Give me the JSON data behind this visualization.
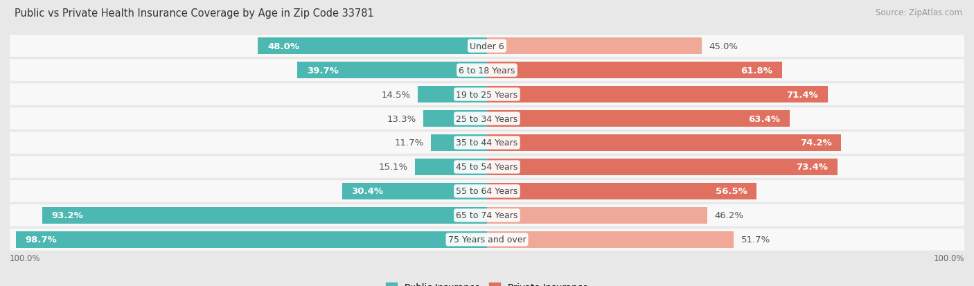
{
  "title": "Public vs Private Health Insurance Coverage by Age in Zip Code 33781",
  "source": "Source: ZipAtlas.com",
  "categories": [
    "Under 6",
    "6 to 18 Years",
    "19 to 25 Years",
    "25 to 34 Years",
    "35 to 44 Years",
    "45 to 54 Years",
    "55 to 64 Years",
    "65 to 74 Years",
    "75 Years and over"
  ],
  "public_values": [
    48.0,
    39.7,
    14.5,
    13.3,
    11.7,
    15.1,
    30.4,
    93.2,
    98.7
  ],
  "private_values": [
    45.0,
    61.8,
    71.4,
    63.4,
    74.2,
    73.4,
    56.5,
    46.2,
    51.7
  ],
  "public_color": "#4db8b2",
  "private_color_strong": "#e07060",
  "private_color_weak": "#f0a898",
  "background_color": "#e8e8e8",
  "row_bg_color": "#f5f5f5",
  "row_alt_color": "#ebebeb",
  "label_fontsize": 9.5,
  "title_fontsize": 10.5,
  "source_fontsize": 8.5,
  "max_value": 100.0,
  "legend_public": "Public Insurance",
  "legend_private": "Private Insurance",
  "private_strong_threshold": 55.0
}
